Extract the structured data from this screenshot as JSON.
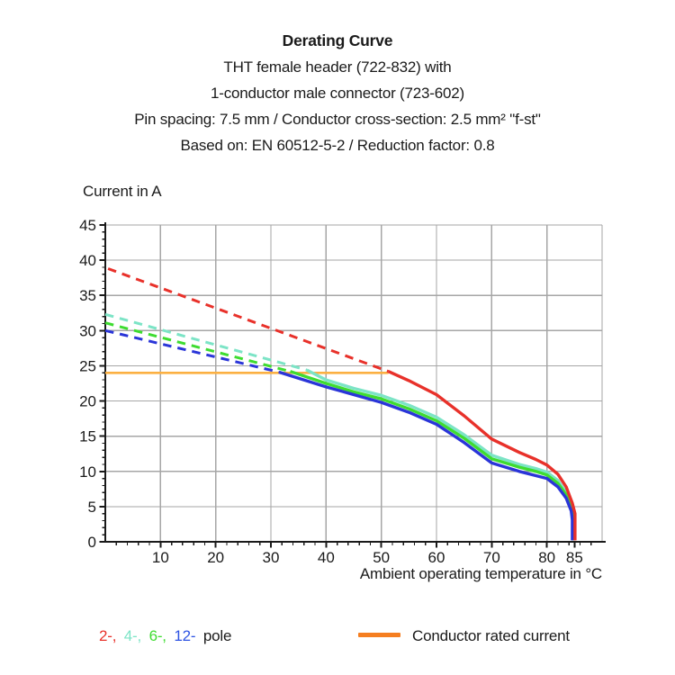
{
  "header": {
    "lines": [
      "Derating Curve",
      "THT female header (722-832) with",
      "1-conductor male connector (723-602)",
      "Pin spacing: 7.5 mm / Conductor cross-section: 2.5 mm² \"f-st\"",
      "Based on: EN 60512-5-2 / Reduction factor: 0.8"
    ]
  },
  "legend": {
    "pole_segments": [
      {
        "text": "2-,",
        "color": "#e8312a"
      },
      {
        "text": "4-,",
        "color": "#7ce4c6"
      },
      {
        "text": "6-,",
        "color": "#3edc30"
      },
      {
        "text": "12-",
        "color": "#2d53e3"
      }
    ],
    "pole_suffix": "pole",
    "rated_current_label": "Conductor rated current",
    "rated_current_color": "#f57e20"
  },
  "chart_data": {
    "type": "line",
    "title": "Derating Curve",
    "xlabel": "Ambient operating temperature in °C",
    "ylabel": "Current in A",
    "xlim": [
      0,
      90
    ],
    "ylim": [
      0,
      45
    ],
    "grid": true,
    "grid_color": "#a6a6a6",
    "axis_color": "#1a1a1a",
    "tick_label_color": "#1a1a1a",
    "x_major_ticks": [
      10,
      20,
      30,
      40,
      50,
      60,
      70,
      80,
      85
    ],
    "x_minor_step": 2,
    "y_major_ticks": [
      0,
      5,
      10,
      15,
      20,
      25,
      30,
      35,
      40,
      45
    ],
    "y_minor_step": 1,
    "legend_position": "bottom",
    "series": [
      {
        "name": "conductor-rated-current",
        "color": "#fbb042",
        "style": "solid",
        "width": 2.6,
        "points": [
          [
            0,
            24
          ],
          [
            51.3,
            24
          ]
        ]
      },
      {
        "name": "2-pole-derated",
        "color": "#e8312a",
        "style": "dashed",
        "width": 3,
        "points": [
          [
            0.5,
            38.8
          ],
          [
            51.3,
            24.2
          ]
        ]
      },
      {
        "name": "4-pole-derated",
        "color": "#7ce4c6",
        "style": "dashed",
        "width": 3,
        "points": [
          [
            0,
            32.3
          ],
          [
            36.5,
            24.4
          ]
        ]
      },
      {
        "name": "6-pole-derated",
        "color": "#3edc30",
        "style": "dashed",
        "width": 3,
        "points": [
          [
            0,
            31.1
          ],
          [
            33.5,
            24.2
          ]
        ]
      },
      {
        "name": "12-pole-derated",
        "color": "#2a35d8",
        "style": "dashed",
        "width": 3,
        "points": [
          [
            0,
            30.0
          ],
          [
            31.5,
            24.1
          ]
        ]
      },
      {
        "name": "4-pole",
        "color": "#7ce4c6",
        "style": "solid",
        "width": 3.4,
        "points": [
          [
            36.5,
            24.4
          ],
          [
            40,
            23.0
          ],
          [
            45,
            21.8
          ],
          [
            50,
            20.8
          ],
          [
            55,
            19.4
          ],
          [
            60,
            17.7
          ],
          [
            65,
            15.2
          ],
          [
            70,
            12.3
          ],
          [
            75,
            11.0
          ],
          [
            78,
            10.4
          ],
          [
            80,
            9.9
          ],
          [
            82,
            8.7
          ],
          [
            83.5,
            7.0
          ],
          [
            84.6,
            5.0
          ],
          [
            85,
            3.6
          ],
          [
            85,
            0.2
          ]
        ]
      },
      {
        "name": "6-pole",
        "color": "#3edc30",
        "style": "solid",
        "width": 3.4,
        "points": [
          [
            33.5,
            24.2
          ],
          [
            40,
            22.5
          ],
          [
            45,
            21.3
          ],
          [
            50,
            20.3
          ],
          [
            55,
            18.9
          ],
          [
            60,
            17.2
          ],
          [
            65,
            14.7
          ],
          [
            70,
            11.8
          ],
          [
            75,
            10.6
          ],
          [
            78,
            10.0
          ],
          [
            80,
            9.5
          ],
          [
            82,
            8.3
          ],
          [
            83.5,
            6.7
          ],
          [
            84.6,
            4.7
          ],
          [
            84.8,
            3.4
          ],
          [
            84.8,
            0.2
          ]
        ]
      },
      {
        "name": "12-pole",
        "color": "#2a35d8",
        "style": "solid",
        "width": 3.4,
        "points": [
          [
            31.5,
            24.1
          ],
          [
            40,
            22.0
          ],
          [
            45,
            20.9
          ],
          [
            50,
            19.8
          ],
          [
            55,
            18.4
          ],
          [
            60,
            16.7
          ],
          [
            65,
            14.1
          ],
          [
            70,
            11.2
          ],
          [
            75,
            10.0
          ],
          [
            78,
            9.4
          ],
          [
            80,
            9.0
          ],
          [
            82,
            7.8
          ],
          [
            83.5,
            6.2
          ],
          [
            84.4,
            4.4
          ],
          [
            84.6,
            3.1
          ],
          [
            84.6,
            0.2
          ]
        ]
      },
      {
        "name": "2-pole",
        "color": "#e8312a",
        "style": "solid",
        "width": 3.4,
        "points": [
          [
            51.3,
            24.2
          ],
          [
            55,
            22.9
          ],
          [
            60,
            20.9
          ],
          [
            65,
            17.9
          ],
          [
            70,
            14.6
          ],
          [
            75,
            12.7
          ],
          [
            78,
            11.7
          ],
          [
            80,
            10.9
          ],
          [
            82,
            9.6
          ],
          [
            83.5,
            7.8
          ],
          [
            84.6,
            5.5
          ],
          [
            85.1,
            4.0
          ],
          [
            85.1,
            0.2
          ]
        ]
      }
    ]
  }
}
